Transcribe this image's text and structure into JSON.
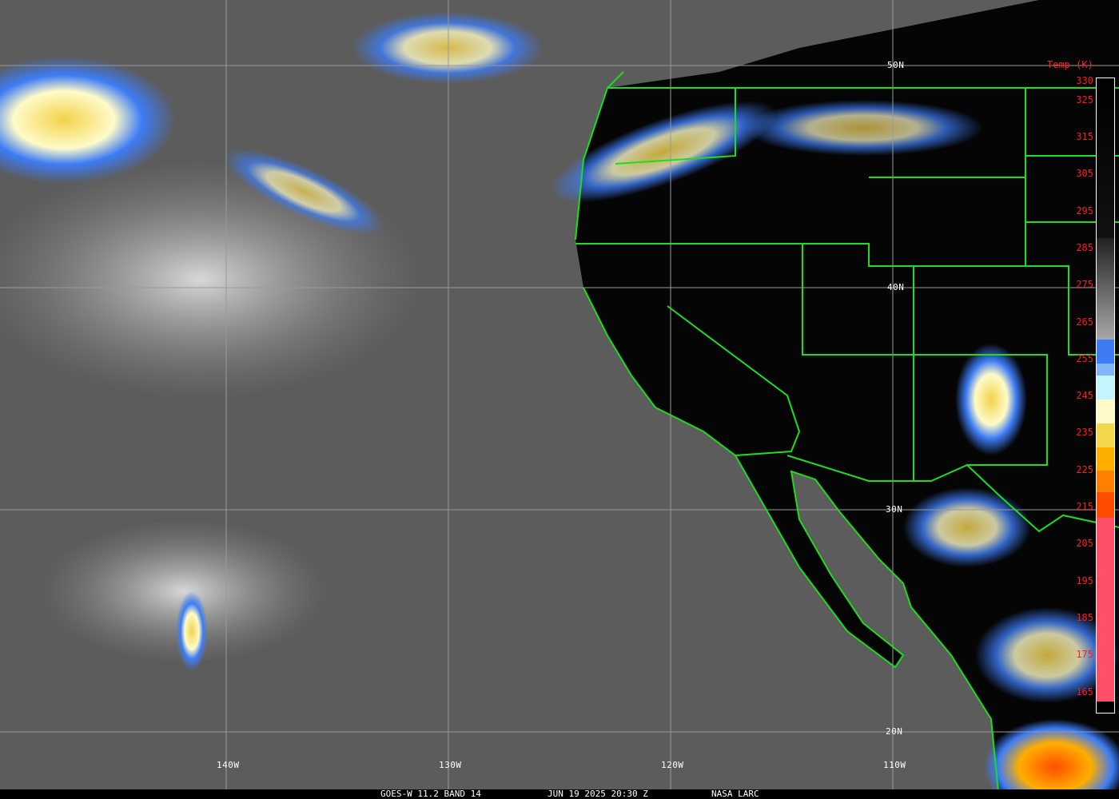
{
  "caption": {
    "satellite": "GOES-W 11.2 BAND 14",
    "datetime": "JUN 19 2025 20:30 Z",
    "source": "NASA LARC"
  },
  "lat_labels": [
    "50N",
    "40N",
    "30N",
    "20N"
  ],
  "lon_labels": [
    "140W",
    "130W",
    "120W",
    "110W"
  ],
  "colorbar": {
    "title": "Temp (K)",
    "ticks": [
      "330",
      "325",
      "315",
      "305",
      "295",
      "285",
      "275",
      "265",
      "255",
      "245",
      "235",
      "225",
      "215",
      "205",
      "195",
      "185",
      "175",
      "165"
    ],
    "colors": {
      "warm": "#000000",
      "mid": "#8c8c8c",
      "blue": "#3d7cf5",
      "lightblue": "#7fb6f7",
      "cyan": "#c4f5fc",
      "cream": "#fefbc9",
      "yellow": "#f2d84a",
      "orange": "#ffae00",
      "darkorange": "#ff7f00",
      "red": "#ff4d00",
      "pink": "#ff5068"
    }
  },
  "colors": {
    "borders": "#1adf1a",
    "grid": "#9a9a9a",
    "ocean": "#5a5a5a",
    "land": "#050505"
  }
}
